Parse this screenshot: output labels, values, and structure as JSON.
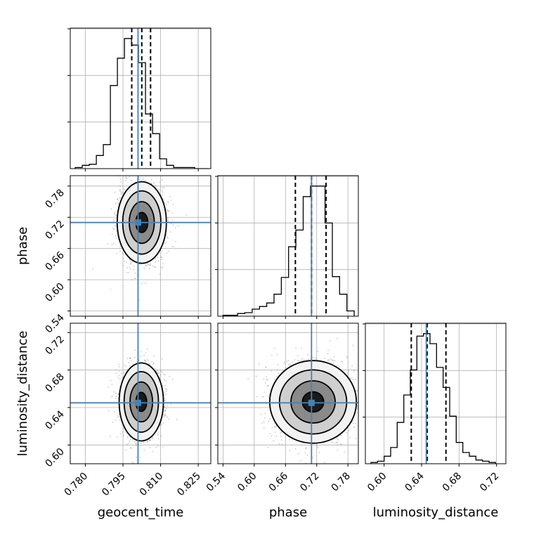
{
  "chart_data": {
    "type": "corner",
    "parameters": [
      {
        "name": "geocent_time",
        "label": "geocent_time",
        "range": [
          0.774,
          0.83
        ],
        "ticks": [
          "0.780",
          "0.795",
          "0.810",
          "0.825"
        ],
        "truth": 0.801,
        "quantiles": [
          0.7985,
          0.8025,
          0.806
        ]
      },
      {
        "name": "phase",
        "label": "phase",
        "range": [
          0.53,
          0.8
        ],
        "ticks": [
          "0.54",
          "0.60",
          "0.66",
          "0.72",
          "0.78"
        ],
        "truth": 0.71,
        "quantiles": [
          0.679,
          0.71,
          0.738
        ]
      },
      {
        "name": "luminosity_distance",
        "label": "luminosity_distance",
        "range": [
          0.58,
          0.73
        ],
        "ticks": [
          "0.60",
          "0.64",
          "0.68",
          "0.72"
        ],
        "truth": 0.645,
        "quantiles": [
          0.629,
          0.646,
          0.666
        ]
      }
    ],
    "histograms": [
      {
        "param": "geocent_time",
        "edges": [
          0.776,
          0.7788,
          0.7816,
          0.7844,
          0.7872,
          0.79,
          0.7928,
          0.7956,
          0.7984,
          0.8012,
          0.804,
          0.8068,
          0.8096,
          0.8124,
          0.8152,
          0.818,
          0.8208,
          0.8236,
          0.8264,
          0.8292
        ],
        "counts": [
          1,
          3,
          4,
          12,
          22,
          76,
          101,
          119,
          113,
          97,
          50,
          32,
          9,
          3,
          1,
          1,
          1,
          0,
          0
        ]
      },
      {
        "param": "phase",
        "edges": [
          0.54,
          0.554,
          0.568,
          0.582,
          0.596,
          0.61,
          0.624,
          0.638,
          0.652,
          0.666,
          0.68,
          0.694,
          0.708,
          0.722,
          0.736,
          0.75,
          0.764,
          0.778,
          0.792
        ],
        "counts": [
          1,
          1,
          3,
          4,
          8,
          11,
          15,
          25,
          44,
          79,
          98,
          136,
          148,
          148,
          106,
          45,
          25,
          6
        ]
      },
      {
        "param": "luminosity_distance",
        "edges": [
          0.586,
          0.593,
          0.6,
          0.607,
          0.614,
          0.621,
          0.628,
          0.635,
          0.642,
          0.649,
          0.656,
          0.663,
          0.67,
          0.677,
          0.684,
          0.691,
          0.698,
          0.705,
          0.712,
          0.719
        ],
        "counts": [
          1,
          2,
          6,
          13,
          33,
          55,
          75,
          102,
          104,
          96,
          77,
          61,
          38,
          17,
          9,
          6,
          3,
          2,
          1
        ]
      }
    ],
    "pairs": [
      {
        "x": "geocent_time",
        "y": "phase",
        "center": [
          0.8025,
          0.71
        ],
        "sigma": [
          0.004,
          0.032
        ],
        "truth": [
          0.801,
          0.71
        ]
      },
      {
        "x": "geocent_time",
        "y": "luminosity_distance",
        "center": [
          0.8023,
          0.646
        ],
        "sigma": [
          0.0036,
          0.017
        ],
        "truth": [
          0.801,
          0.645
        ]
      },
      {
        "x": "phase",
        "y": "luminosity_distance",
        "center": [
          0.713,
          0.646
        ],
        "sigma": [
          0.034,
          0.018
        ],
        "truth": [
          0.71,
          0.645
        ]
      }
    ],
    "grid": true,
    "truth_color": "#4682b4",
    "quantile_style": "dashed"
  }
}
